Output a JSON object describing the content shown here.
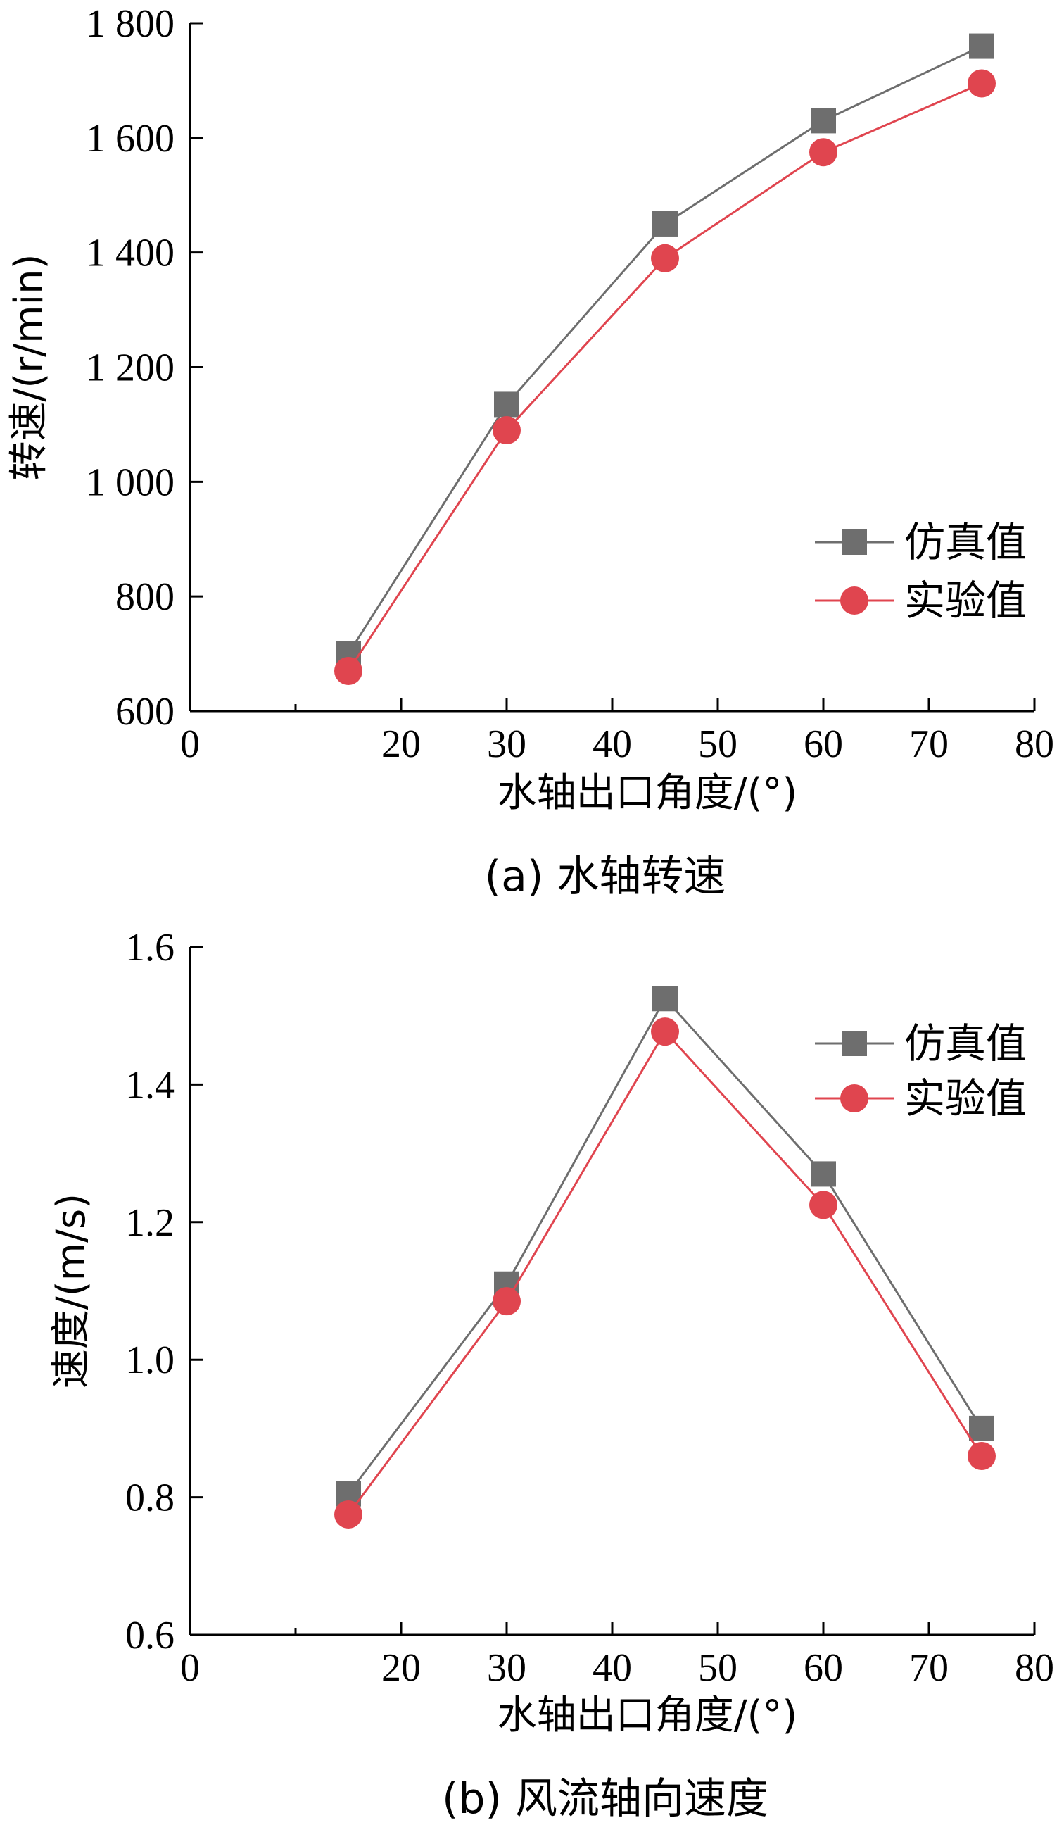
{
  "chart_data": [
    {
      "type": "line",
      "caption": "(a)  水轴转速",
      "xlabel": "水轴出口角度/(°)",
      "ylabel": "转速/(r/min)",
      "xlim": [
        0,
        80
      ],
      "ylim": [
        600,
        1800
      ],
      "xticks": [
        0,
        20,
        30,
        40,
        50,
        60,
        70,
        80
      ],
      "xtick_labels": [
        "0",
        "20",
        "30",
        "40",
        "50",
        "60",
        "70",
        "80"
      ],
      "yticks": [
        600,
        800,
        1000,
        1200,
        1400,
        1600,
        1800
      ],
      "ytick_labels": [
        "600",
        "800",
        "1 000",
        "1 200",
        "1 400",
        "1 600",
        "1 800"
      ],
      "x": [
        15,
        30,
        45,
        60,
        75
      ],
      "series": [
        {
          "name": "仿真值",
          "color": "#6e6e6e",
          "marker": "square",
          "values": [
            700,
            1135,
            1450,
            1630,
            1760
          ]
        },
        {
          "name": "实验值",
          "color": "#e0454f",
          "marker": "circle",
          "values": [
            670,
            1090,
            1390,
            1575,
            1695
          ]
        }
      ],
      "legend_position": "right"
    },
    {
      "type": "line",
      "caption": "(b)  风流轴向速度",
      "xlabel": "水轴出口角度/(°)",
      "ylabel": "速度/(m/s)",
      "xlim": [
        0,
        80
      ],
      "ylim": [
        0.6,
        1.6
      ],
      "xticks": [
        0,
        20,
        30,
        40,
        50,
        60,
        70,
        80
      ],
      "xtick_labels": [
        "0",
        "20",
        "30",
        "40",
        "50",
        "60",
        "70",
        "80"
      ],
      "yticks": [
        0.6,
        0.8,
        1.0,
        1.2,
        1.4,
        1.6
      ],
      "ytick_labels": [
        "0.6",
        "0.8",
        "1.0",
        "1.2",
        "1.4",
        "1.6"
      ],
      "x": [
        15,
        30,
        45,
        60,
        75
      ],
      "series": [
        {
          "name": "仿真值",
          "color": "#6e6e6e",
          "marker": "square",
          "values": [
            0.805,
            1.11,
            1.525,
            1.27,
            0.9
          ]
        },
        {
          "name": "实验值",
          "color": "#e0454f",
          "marker": "circle",
          "values": [
            0.775,
            1.085,
            1.477,
            1.225,
            0.86
          ]
        }
      ],
      "legend_position": "top-right"
    }
  ]
}
